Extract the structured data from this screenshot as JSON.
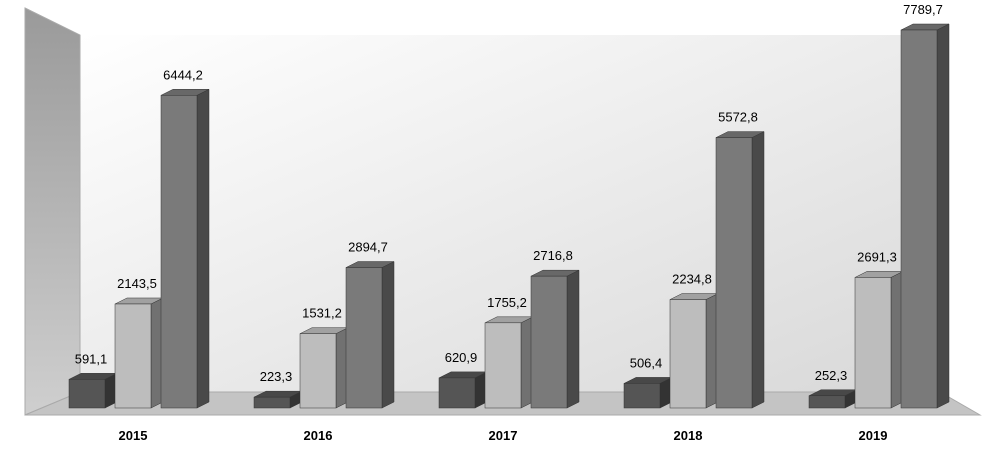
{
  "chart_data": {
    "type": "bar3d",
    "categories": [
      "2015",
      "2016",
      "2017",
      "2018",
      "2019"
    ],
    "series": [
      {
        "color": "#555555",
        "values": [
          591.1,
          223.3,
          620.9,
          506.4,
          252.3
        ],
        "value_labels": [
          "591,1",
          "223,3",
          "620,9",
          "506,4",
          "252,3"
        ]
      },
      {
        "color": "#bdbdbd",
        "values": [
          2143.5,
          1531.2,
          1755.2,
          2234.8,
          2691.3
        ],
        "value_labels": [
          "2143,5",
          "1531,2",
          "1755,2",
          "2234,8",
          "2691,3"
        ]
      },
      {
        "color": "#7a7a7a",
        "values": [
          6444.2,
          2894.7,
          2716.8,
          5572.8,
          7789.7
        ],
        "value_labels": [
          "6444,2",
          "2894,7",
          "2716,8",
          "5572,8",
          "7789,7"
        ]
      }
    ]
  }
}
